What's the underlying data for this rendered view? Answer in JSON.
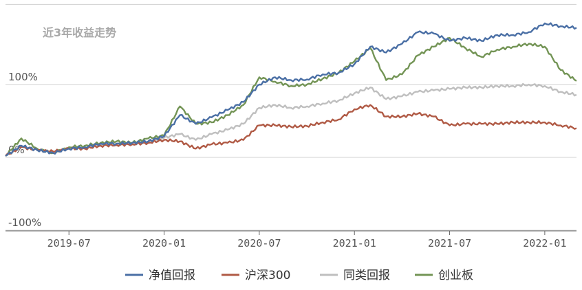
{
  "chart_data": {
    "type": "line",
    "title": "近3年收益走势",
    "xlabel": "",
    "ylabel": "",
    "x_ticks": [
      "2019-07",
      "2020-01",
      "2020-07",
      "2021-01",
      "2021-07",
      "2022-01"
    ],
    "x_range": [
      "2019-03",
      "2022-03"
    ],
    "y_ticks": [
      {
        "value": 100,
        "label": "100%"
      },
      {
        "value": 0,
        "label": "0%"
      },
      {
        "value": -100,
        "label": "-100%"
      }
    ],
    "ylim": [
      -100,
      210
    ],
    "grid": true,
    "legend_position": "bottom",
    "series": [
      {
        "name": "净值回报",
        "color": "#4a6fa5",
        "x": [
          "2019-03",
          "2019-04",
          "2019-05",
          "2019-06",
          "2019-07",
          "2019-08",
          "2019-09",
          "2019-10",
          "2019-11",
          "2019-12",
          "2020-01",
          "2020-02",
          "2020-03",
          "2020-04",
          "2020-05",
          "2020-06",
          "2020-07",
          "2020-08",
          "2020-09",
          "2020-10",
          "2020-11",
          "2020-12",
          "2021-01",
          "2021-02",
          "2021-03",
          "2021-04",
          "2021-05",
          "2021-06",
          "2021-07",
          "2021-08",
          "2021-09",
          "2021-10",
          "2021-11",
          "2021-12",
          "2022-01",
          "2022-02",
          "2022-03"
        ],
        "values": [
          2,
          16,
          10,
          6,
          12,
          14,
          19,
          19,
          20,
          22,
          29,
          58,
          46,
          55,
          65,
          76,
          100,
          110,
          106,
          107,
          114,
          116,
          128,
          152,
          144,
          156,
          172,
          170,
          160,
          164,
          160,
          168,
          168,
          172,
          184,
          180,
          178
        ]
      },
      {
        "name": "沪深300",
        "color": "#b05a45",
        "x": [
          "2019-03",
          "2019-04",
          "2019-05",
          "2019-06",
          "2019-07",
          "2019-08",
          "2019-09",
          "2019-10",
          "2019-11",
          "2019-12",
          "2020-01",
          "2020-02",
          "2020-03",
          "2020-04",
          "2020-05",
          "2020-06",
          "2020-07",
          "2020-08",
          "2020-09",
          "2020-10",
          "2020-11",
          "2020-12",
          "2021-01",
          "2021-02",
          "2021-03",
          "2021-04",
          "2021-05",
          "2021-06",
          "2021-07",
          "2021-08",
          "2021-09",
          "2021-10",
          "2021-11",
          "2021-12",
          "2022-01",
          "2022-02",
          "2022-03"
        ],
        "values": [
          2,
          14,
          10,
          8,
          12,
          12,
          16,
          17,
          18,
          20,
          24,
          22,
          12,
          18,
          20,
          24,
          44,
          44,
          42,
          43,
          48,
          52,
          66,
          72,
          56,
          56,
          60,
          56,
          44,
          46,
          46,
          46,
          48,
          48,
          48,
          44,
          40
        ]
      },
      {
        "name": "同类回报",
        "color": "#bfbfbf",
        "x": [
          "2019-03",
          "2019-04",
          "2019-05",
          "2019-06",
          "2019-07",
          "2019-08",
          "2019-09",
          "2019-10",
          "2019-11",
          "2019-12",
          "2020-01",
          "2020-02",
          "2020-03",
          "2020-04",
          "2020-05",
          "2020-06",
          "2020-07",
          "2020-08",
          "2020-09",
          "2020-10",
          "2020-11",
          "2020-12",
          "2021-01",
          "2021-02",
          "2021-03",
          "2021-04",
          "2021-05",
          "2021-06",
          "2021-07",
          "2021-08",
          "2021-09",
          "2021-10",
          "2021-11",
          "2021-12",
          "2022-01",
          "2022-02",
          "2022-03"
        ],
        "values": [
          2,
          15,
          10,
          7,
          12,
          13,
          18,
          18,
          19,
          21,
          27,
          32,
          24,
          32,
          38,
          46,
          68,
          72,
          68,
          70,
          74,
          78,
          88,
          96,
          80,
          84,
          90,
          92,
          94,
          96,
          96,
          98,
          98,
          100,
          98,
          90,
          86
        ]
      },
      {
        "name": "创业板",
        "color": "#739455",
        "x": [
          "2019-03",
          "2019-04",
          "2019-05",
          "2019-06",
          "2019-07",
          "2019-08",
          "2019-09",
          "2019-10",
          "2019-11",
          "2019-12",
          "2020-01",
          "2020-02",
          "2020-03",
          "2020-04",
          "2020-05",
          "2020-06",
          "2020-07",
          "2020-08",
          "2020-09",
          "2020-10",
          "2020-11",
          "2020-12",
          "2021-01",
          "2021-02",
          "2021-03",
          "2021-04",
          "2021-05",
          "2021-06",
          "2021-07",
          "2021-08",
          "2021-09",
          "2021-10",
          "2021-11",
          "2021-12",
          "2022-01",
          "2022-02",
          "2022-03"
        ],
        "values": [
          2,
          26,
          12,
          6,
          14,
          16,
          20,
          22,
          20,
          26,
          30,
          70,
          46,
          48,
          58,
          72,
          110,
          104,
          98,
          100,
          108,
          116,
          132,
          150,
          106,
          114,
          140,
          152,
          164,
          150,
          138,
          148,
          152,
          156,
          152,
          120,
          105
        ]
      }
    ]
  }
}
